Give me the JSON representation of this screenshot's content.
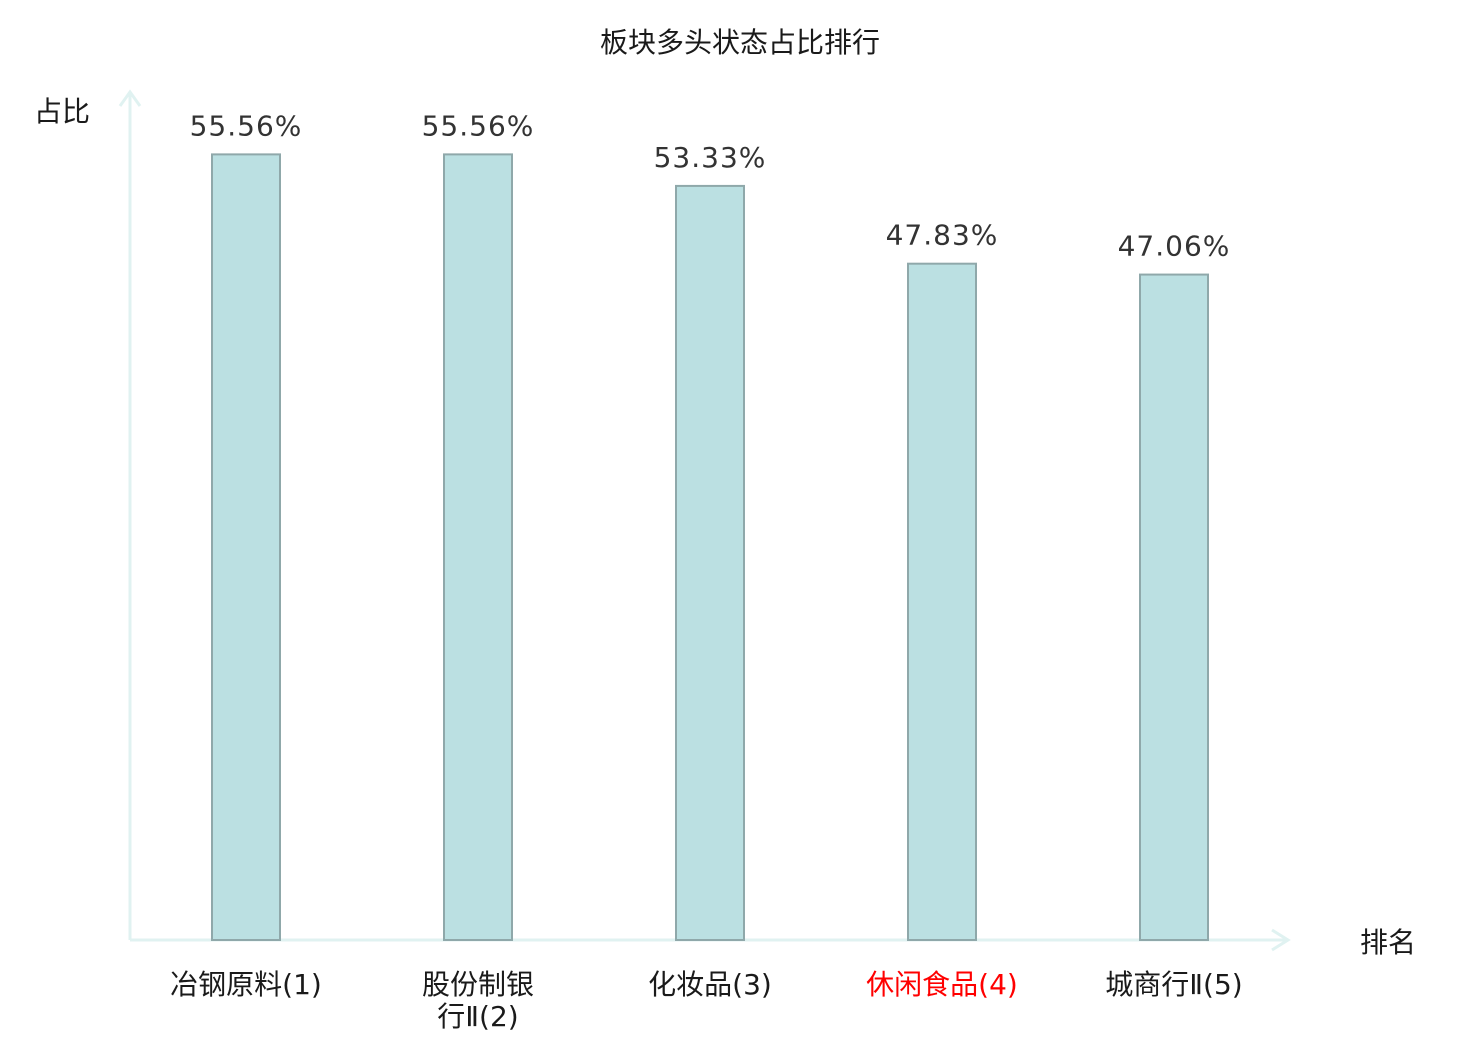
{
  "chart_data": {
    "type": "bar",
    "title": "板块多头状态占比排行",
    "xlabel": "排名",
    "ylabel": "占比",
    "categories": [
      "冶钢原料(1)",
      "股份制银行Ⅱ(2)",
      "化妆品(3)",
      "休闲食品(4)",
      "城商行Ⅱ(5)"
    ],
    "category_lines": [
      [
        "冶钢原料(1)"
      ],
      [
        "股份制银",
        "行Ⅱ(2)"
      ],
      [
        "化妆品(3)"
      ],
      [
        "休闲食品(4)"
      ],
      [
        "城商行Ⅱ(5)"
      ]
    ],
    "values": [
      55.56,
      55.56,
      53.33,
      47.83,
      47.06
    ],
    "value_labels": [
      "55.56%",
      "55.56%",
      "53.33%",
      "47.83%",
      "47.06%"
    ],
    "highlight_index": 3,
    "ylim": [
      0,
      60
    ],
    "grid": false,
    "colors": {
      "bar_fill": "#bbe0e2",
      "bar_stroke": "#8fa8aa",
      "axis": "#e0f2f1",
      "label": "#1a1a1a",
      "highlight": "#ff0000"
    }
  }
}
